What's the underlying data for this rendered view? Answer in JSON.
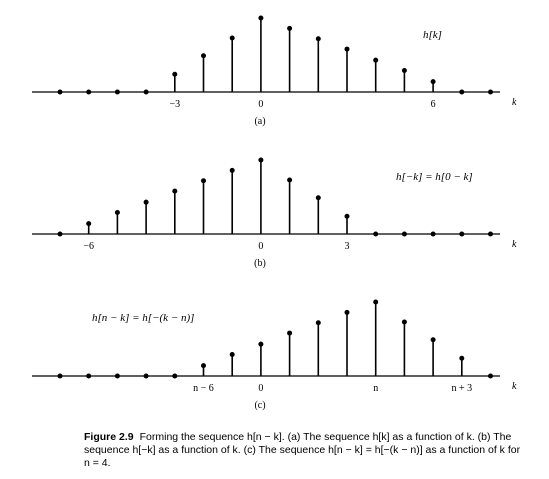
{
  "chart_data": [
    {
      "type": "stem",
      "label": "h[k]",
      "panel": "(a)",
      "xlabel": "k",
      "xlim": [
        -7,
        8
      ],
      "ylim": [
        0,
        1
      ],
      "x": [
        -7,
        -6,
        -5,
        -4,
        -3,
        -2,
        -1,
        0,
        1,
        2,
        3,
        4,
        5,
        6,
        7,
        8
      ],
      "values": [
        0,
        0,
        0,
        0,
        0.24,
        0.49,
        0.73,
        1.0,
        0.86,
        0.72,
        0.58,
        0.43,
        0.29,
        0.14,
        0,
        0
      ],
      "tick_labels": [
        {
          "x": -3,
          "text": "−3"
        },
        {
          "x": 0,
          "text": "0"
        },
        {
          "x": 6,
          "text": "6"
        }
      ]
    },
    {
      "type": "stem",
      "label": "h[−k] = h[0 − k]",
      "panel": "(b)",
      "xlabel": "k",
      "xlim": [
        -7,
        8
      ],
      "ylim": [
        0,
        1
      ],
      "x": [
        -7,
        -6,
        -5,
        -4,
        -3,
        -2,
        -1,
        0,
        1,
        2,
        3,
        4,
        5,
        6,
        7,
        8
      ],
      "values": [
        0,
        0.14,
        0.29,
        0.43,
        0.58,
        0.72,
        0.86,
        1.0,
        0.73,
        0.49,
        0.24,
        0,
        0,
        0,
        0,
        0
      ],
      "tick_labels": [
        {
          "x": -6,
          "text": "−6"
        },
        {
          "x": 0,
          "text": "0"
        },
        {
          "x": 3,
          "text": "3"
        }
      ]
    },
    {
      "type": "stem",
      "label": "h[n − k] = h[−(k − n)]",
      "panel": "(c)",
      "xlabel": "k",
      "xlim": [
        -7,
        8
      ],
      "ylim": [
        0,
        1
      ],
      "x": [
        -7,
        -6,
        -5,
        -4,
        -3,
        -2,
        -1,
        0,
        1,
        2,
        3,
        4,
        5,
        6,
        7,
        8
      ],
      "values": [
        0,
        0,
        0,
        0,
        0,
        0.14,
        0.29,
        0.43,
        0.58,
        0.72,
        0.86,
        1.0,
        0.73,
        0.49,
        0.24,
        0
      ],
      "tick_labels": [
        {
          "x": -2,
          "text": "n − 6"
        },
        {
          "x": 0,
          "text": "0"
        },
        {
          "x": 4,
          "text": "n"
        },
        {
          "x": 7,
          "text": "n + 3"
        }
      ]
    }
  ],
  "caption": {
    "figure_number": "Figure 2.9",
    "text": "Forming the sequence h[n − k]. (a) The sequence h[k] as a function of k. (b) The sequence h[−k] as a function of k. (c) The sequence h[n − k] = h[−(k − n)] as a function of k for n = 4."
  }
}
